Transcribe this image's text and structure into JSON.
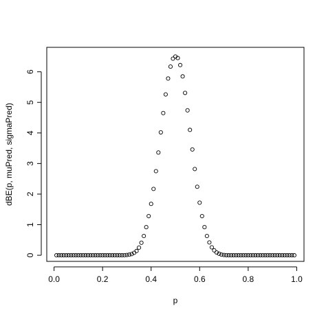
{
  "chart_data": {
    "type": "scatter",
    "xlabel": "p",
    "ylabel": "dBE(p, muPred, sigmaPred)",
    "xlim": [
      -0.03,
      1.03
    ],
    "ylim": [
      -0.2,
      6.8
    ],
    "xticks": [
      "0.0",
      "0.2",
      "0.4",
      "0.6",
      "0.8",
      "1.0"
    ],
    "yticks": [
      "0",
      "1",
      "2",
      "3",
      "4",
      "5",
      "6"
    ],
    "grid": false,
    "marker": "open-circle",
    "series": [
      {
        "x": [
          0.01,
          0.02,
          0.03,
          0.04,
          0.05,
          0.06,
          0.07,
          0.08,
          0.09,
          0.1,
          0.11,
          0.12,
          0.13,
          0.14,
          0.15,
          0.16,
          0.17,
          0.18,
          0.19,
          0.2,
          0.21,
          0.22,
          0.23,
          0.24,
          0.25,
          0.26,
          0.27,
          0.28,
          0.29,
          0.3,
          0.31,
          0.32,
          0.33,
          0.34,
          0.35,
          0.36,
          0.37,
          0.38,
          0.39,
          0.4,
          0.41,
          0.42,
          0.43,
          0.44,
          0.45,
          0.46,
          0.47,
          0.48,
          0.49,
          0.5,
          0.51,
          0.52,
          0.53,
          0.54,
          0.55,
          0.56,
          0.57,
          0.58,
          0.59,
          0.6,
          0.61,
          0.62,
          0.63,
          0.64,
          0.65,
          0.66,
          0.67,
          0.68,
          0.69,
          0.7,
          0.71,
          0.72,
          0.73,
          0.74,
          0.75,
          0.76,
          0.77,
          0.78,
          0.79,
          0.8,
          0.81,
          0.82,
          0.83,
          0.84,
          0.85,
          0.86,
          0.87,
          0.88,
          0.89,
          0.9,
          0.91,
          0.92,
          0.93,
          0.94,
          0.95,
          0.96,
          0.97,
          0.98,
          0.99
        ],
        "y": [
          0,
          0,
          0,
          0,
          0,
          0,
          0,
          0,
          0,
          0,
          0,
          0,
          0,
          0,
          0,
          0,
          0,
          0,
          0,
          0,
          0,
          0,
          0,
          0,
          0,
          0,
          0,
          0,
          0.002,
          0.01,
          0.02,
          0.04,
          0.08,
          0.14,
          0.25,
          0.41,
          0.63,
          0.92,
          1.28,
          1.68,
          2.17,
          2.75,
          3.36,
          4.02,
          4.65,
          5.26,
          5.78,
          6.17,
          6.43,
          6.5,
          6.45,
          6.22,
          5.85,
          5.31,
          4.74,
          4.1,
          3.46,
          2.82,
          2.24,
          1.72,
          1.28,
          0.92,
          0.63,
          0.42,
          0.26,
          0.16,
          0.09,
          0.05,
          0.02,
          0.01,
          0.004,
          0,
          0,
          0,
          0,
          0,
          0,
          0,
          0,
          0,
          0,
          0,
          0,
          0,
          0,
          0,
          0,
          0,
          0,
          0,
          0,
          0,
          0,
          0,
          0,
          0,
          0,
          0,
          0
        ]
      }
    ]
  }
}
